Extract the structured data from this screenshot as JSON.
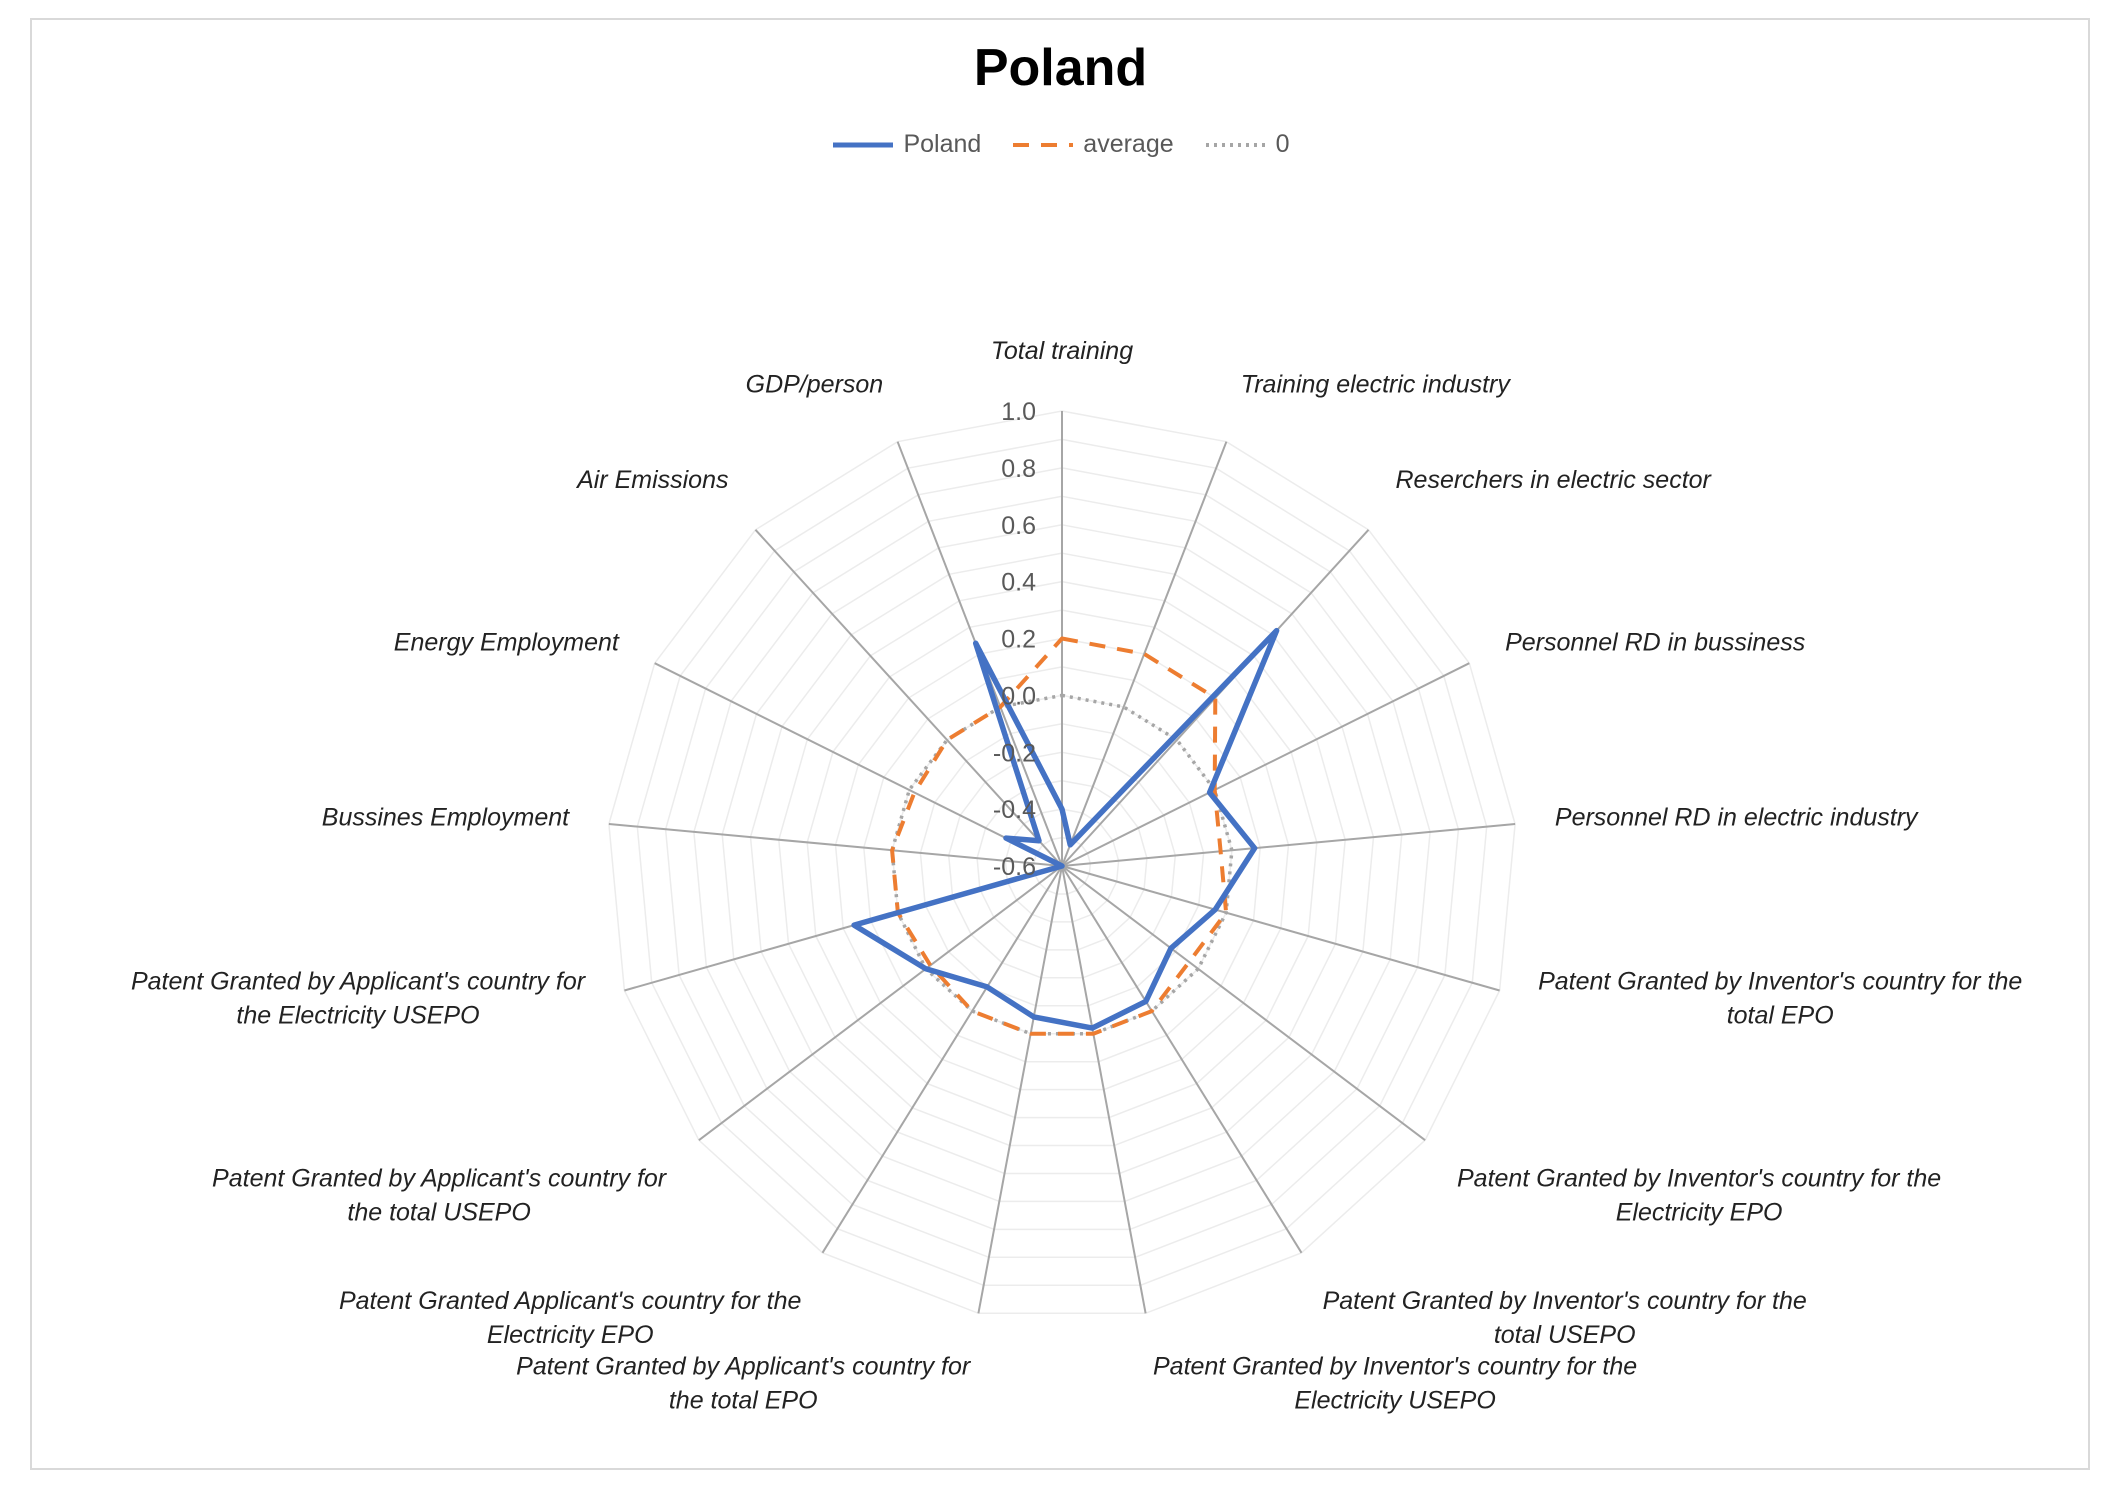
{
  "chart_data": {
    "type": "radar",
    "title": "Poland",
    "categories": [
      "Total training",
      "Training electric industry",
      "Reserchers in electric sector",
      "Personnel RD in bussiness",
      "Personnel RD in electric industry",
      "Patent Granted by Inventor's country for the total EPO",
      "Patent Granted by Inventor's country for the Electricity EPO",
      "Patent Granted by Inventor's country for the total USEPO",
      "Patent Granted by Inventor's country for the Electricity USEPO",
      "Patent Granted by Applicant's country for the total EPO",
      "Patent Granted Applicant's country for the Electricity EPO",
      "Patent Granted by Applicant's country for the total USEPO",
      "Patent Granted by Applicant's country for the Electricity USEPO",
      "Bussines Employment",
      "Energy Employment",
      "Air Emissions",
      "GDP/person"
    ],
    "category_lines": [
      [
        "Total training"
      ],
      [
        "Training electric industry"
      ],
      [
        "Reserchers in electric sector"
      ],
      [
        "Personnel RD in bussiness"
      ],
      [
        "Personnel RD in electric industry"
      ],
      [
        "Patent Granted by Inventor's country for the",
        "total EPO"
      ],
      [
        "Patent Granted by Inventor's country for the",
        "Electricity EPO"
      ],
      [
        "Patent Granted by Inventor's country for the",
        "total USEPO"
      ],
      [
        "Patent Granted by Inventor's country for the",
        "Electricity USEPO"
      ],
      [
        "Patent Granted by Applicant's country for",
        "the total EPO"
      ],
      [
        "Patent Granted Applicant's country for the",
        "Electricity EPO"
      ],
      [
        "Patent Granted by Applicant's country for",
        "the total USEPO"
      ],
      [
        "Patent Granted by Applicant's country for",
        "the Electricity USEPO"
      ],
      [
        "Bussines Employment"
      ],
      [
        "Energy Employment"
      ],
      [
        "Air Emissions"
      ],
      [
        "GDP/person"
      ]
    ],
    "series": [
      {
        "name": "Poland",
        "color": "#4472c4",
        "style": "solid",
        "values": [
          -0.4,
          -0.52,
          0.52,
          -0.02,
          0.08,
          -0.04,
          -0.12,
          -0.04,
          -0.02,
          -0.06,
          -0.1,
          0.0,
          0.16,
          -0.6,
          -0.38,
          -0.48,
          0.24
        ]
      },
      {
        "name": "average",
        "color": "#ed7d31",
        "style": "dashed",
        "values": [
          0.2,
          0.2,
          0.2,
          0.0,
          -0.04,
          0.0,
          -0.04,
          0.0,
          0.0,
          0.0,
          0.0,
          -0.02,
          0.0,
          0.0,
          -0.02,
          0.0,
          0.0
        ]
      },
      {
        "name": "0",
        "color": "#a6a6a6",
        "style": "dotted",
        "values": [
          0,
          0,
          0,
          0,
          0,
          0,
          0,
          0,
          0,
          0,
          0,
          0,
          0,
          0,
          0,
          0,
          0
        ]
      }
    ],
    "r_axis": {
      "min": -0.6,
      "max": 1.0,
      "ticks": [
        "-0.6",
        "-0.4",
        "-0.2",
        "0.0",
        "0.2",
        "0.4",
        "0.6",
        "0.8",
        "1.0"
      ]
    },
    "legend_position": "top"
  }
}
